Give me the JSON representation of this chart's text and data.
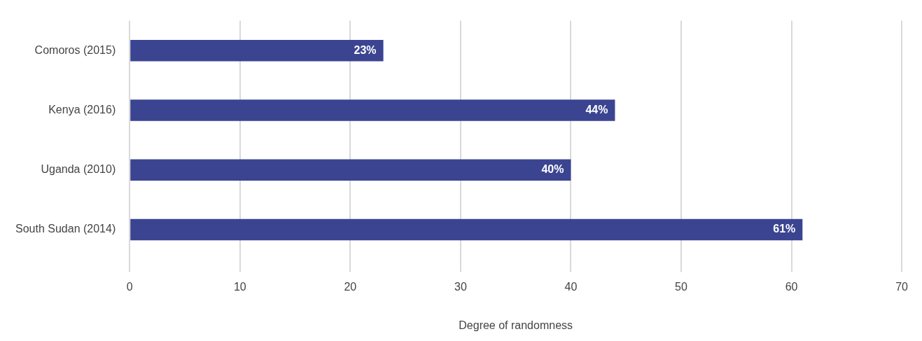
{
  "chart_data": {
    "type": "bar",
    "orientation": "horizontal",
    "xlabel": "Degree of randomness",
    "categories": [
      "Comoros (2015)",
      "Kenya (2016)",
      "Uganda (2010)",
      "South Sudan (2014)"
    ],
    "values": [
      23,
      44,
      40,
      61
    ],
    "value_labels": [
      "23%",
      "44%",
      "40%",
      "61%"
    ],
    "color": "#3b4491",
    "xlim": [
      0,
      70
    ],
    "xticks": [
      0,
      10,
      20,
      30,
      40,
      50,
      60,
      70
    ],
    "grid": "x",
    "legend": false
  }
}
